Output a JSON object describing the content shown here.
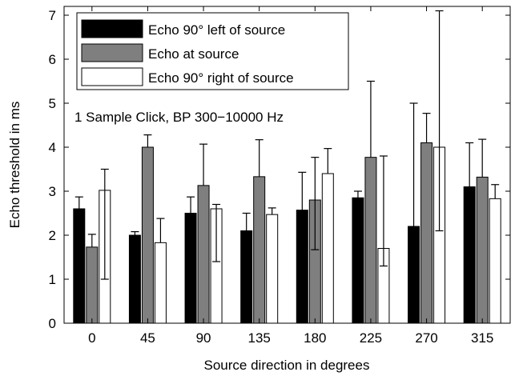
{
  "chart_data": {
    "type": "bar",
    "xlabel": "Source direction in degrees",
    "ylabel": "Echo threshold in ms",
    "annotation": "1 Sample Click, BP 300−10000 Hz",
    "categories": [
      "0",
      "45",
      "90",
      "135",
      "180",
      "225",
      "270",
      "315"
    ],
    "ylim": [
      0,
      7.2
    ],
    "yticks": [
      0,
      1,
      2,
      3,
      4,
      5,
      6,
      7
    ],
    "legend_position": "top-left",
    "grid": false,
    "series": [
      {
        "name": "Echo 90° left of source",
        "color": "#000000",
        "values": [
          2.6,
          2.0,
          2.5,
          2.1,
          2.57,
          2.85,
          2.2,
          3.1
        ],
        "err_high": [
          2.87,
          2.08,
          2.87,
          2.5,
          3.43,
          3.0,
          5.0,
          4.1
        ],
        "err_low": [
          2.6,
          2.0,
          2.5,
          2.1,
          2.57,
          2.85,
          2.2,
          3.1
        ]
      },
      {
        "name": "Echo at source",
        "color": "#7f7f7f",
        "values": [
          1.73,
          4.0,
          3.13,
          3.33,
          2.8,
          3.77,
          4.1,
          3.32
        ],
        "err_high": [
          2.02,
          4.28,
          4.07,
          4.17,
          3.77,
          5.5,
          4.77,
          4.18
        ],
        "err_low": [
          1.73,
          4.0,
          3.13,
          3.33,
          1.67,
          3.77,
          4.1,
          3.32
        ]
      },
      {
        "name": "Echo 90° right of source",
        "color": "#ffffff",
        "values": [
          3.02,
          1.83,
          2.6,
          2.47,
          3.4,
          1.7,
          4.0,
          2.83
        ],
        "err_high": [
          3.5,
          2.38,
          2.7,
          2.62,
          3.97,
          3.8,
          7.1,
          3.15
        ],
        "err_low": [
          1.0,
          1.83,
          1.4,
          2.47,
          3.4,
          1.3,
          2.1,
          2.83
        ]
      }
    ]
  }
}
